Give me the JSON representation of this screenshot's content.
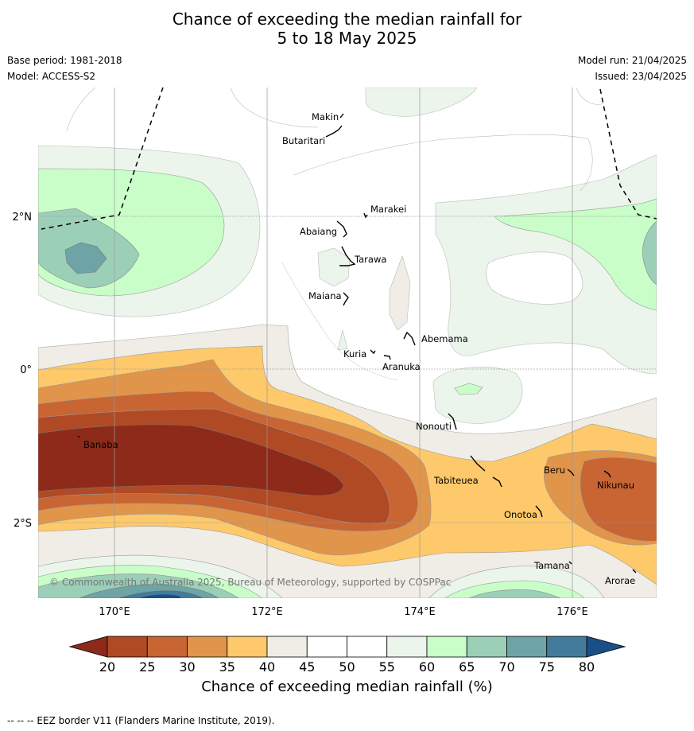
{
  "title_line1": "Chance of exceeding the median rainfall for",
  "title_line2": "5 to 18 May 2025",
  "meta": {
    "base_period": "Base period: 1981-2018",
    "model": "Model: ACCESS-S2",
    "model_run": "Model run: 21/04/2025",
    "issued": "Issued: 23/04/2025"
  },
  "map": {
    "lat_labels": [
      "2°N",
      "0°",
      "2°S"
    ],
    "lon_labels": [
      "170°E",
      "172°E",
      "174°E",
      "176°E"
    ],
    "places": [
      "Makin",
      "Butaritari",
      "Marakei",
      "Abaiang",
      "Tarawa",
      "Maiana",
      "Abemama",
      "Kuria",
      "Aranuka",
      "Nonouti",
      "Banaba",
      "Tabiteuea",
      "Beru",
      "Nikunau",
      "Onotoa",
      "Tamana",
      "Arorae"
    ],
    "copyright": "© Commonwealth of Australia 2025, Bureau of Meteorology, supported by COSPPac"
  },
  "colorbar": {
    "ticks": [
      "20",
      "25",
      "30",
      "35",
      "40",
      "45",
      "50",
      "55",
      "60",
      "65",
      "70",
      "75",
      "80"
    ],
    "colors": [
      "#8e2a1a",
      "#b04a25",
      "#c96433",
      "#e0954a",
      "#fec96a",
      "#f0ece6",
      "#ffffff",
      "#ffffff",
      "#ebf5eb",
      "#c9fec9",
      "#9ccfb8",
      "#6ea4a6",
      "#437c9b",
      "#1a4e86"
    ],
    "label": "Chance of exceeding median rainfall (%)"
  },
  "footnote": "--  --  -- EEZ border V11 (Flanders Marine Institute, 2019)."
}
